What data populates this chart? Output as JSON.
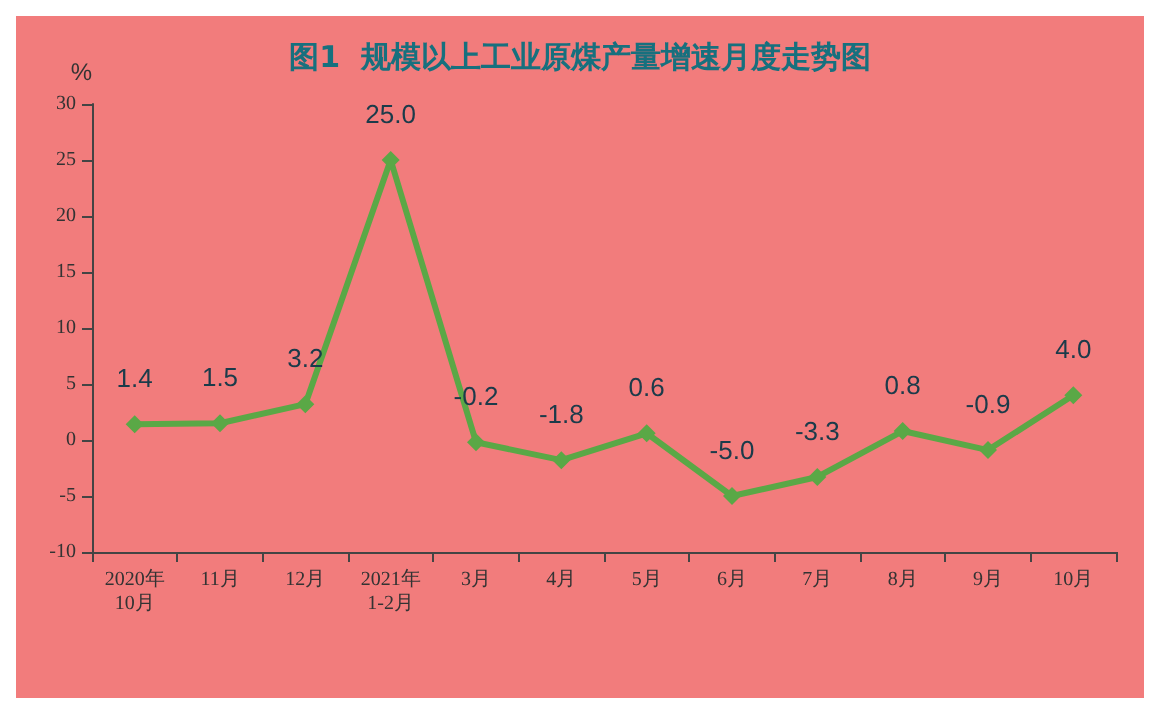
{
  "chart_data": {
    "type": "line",
    "title": "图1  规模以上工业原煤产量增速月度走势图",
    "ylabel": "%",
    "categories": [
      "2020年\n10月",
      "11月",
      "12月",
      "2021年\n1-2月",
      "3月",
      "4月",
      "5月",
      "6月",
      "7月",
      "8月",
      "9月",
      "10月"
    ],
    "series": [
      {
        "color": "#5aa846",
        "values": [
          1.4,
          1.5,
          3.2,
          25.0,
          -0.2,
          -1.8,
          0.6,
          -5.0,
          -3.3,
          0.8,
          -0.9,
          4.0
        ],
        "value_labels": [
          "1.4",
          "1.5",
          "3.2",
          "25.0",
          "-0.2",
          "-1.8",
          "0.6",
          "-5.0",
          "-3.3",
          "0.8",
          "-0.9",
          "4.0"
        ]
      }
    ],
    "ylim": [
      -10,
      30
    ],
    "yticks": [
      -10,
      -5,
      0,
      5,
      10,
      15,
      20,
      25,
      30
    ],
    "grid": false,
    "marker": "diamond",
    "line_style": "solid"
  }
}
